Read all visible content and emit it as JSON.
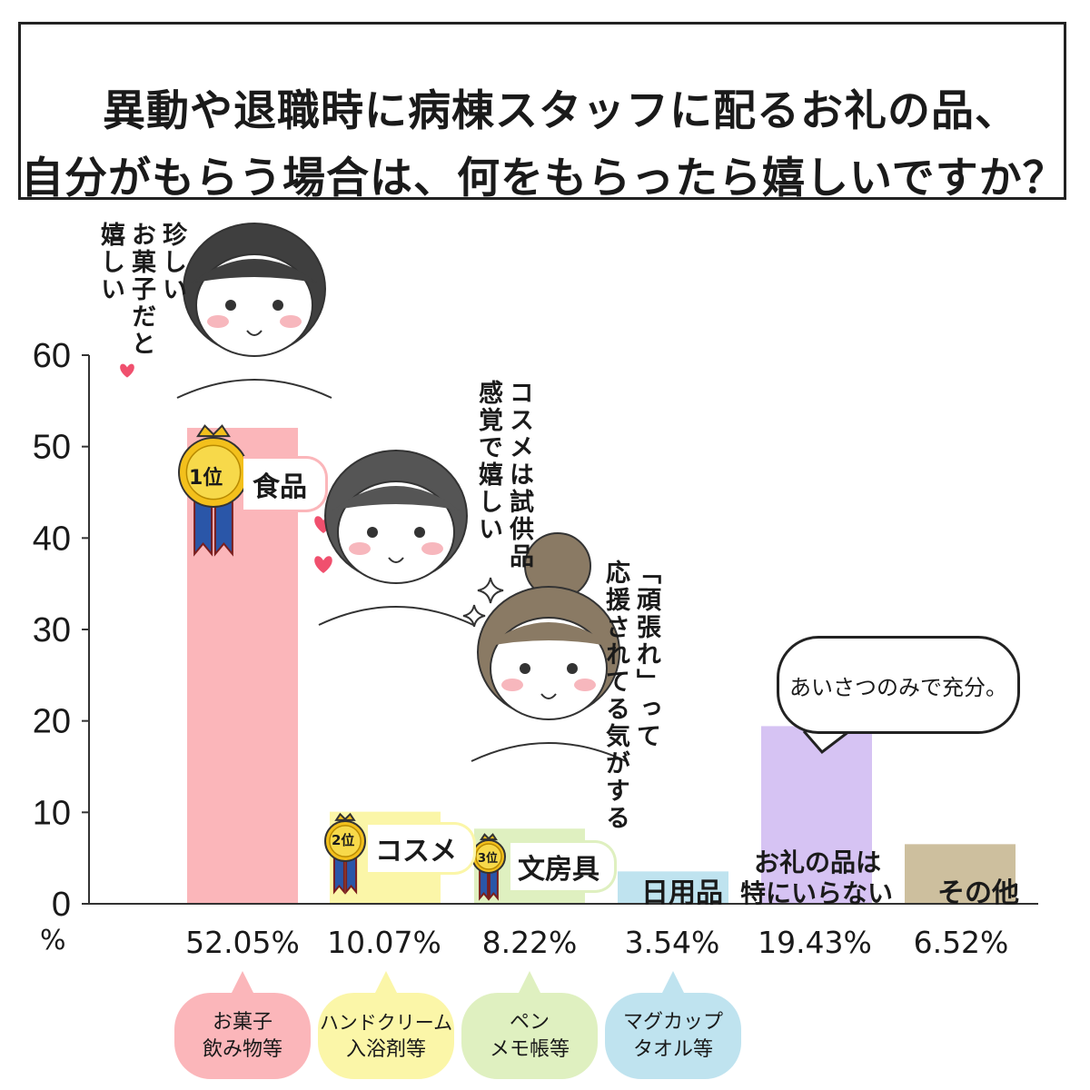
{
  "title": {
    "line1": "異動や退職時に病棟スタッフに配るお礼の品、",
    "line2": "自分がもらう場合は、何をもらったら嬉しいですか？"
  },
  "axis": {
    "unit": "%",
    "ticks": [
      "0",
      "10",
      "20",
      "30",
      "40",
      "50",
      "60"
    ]
  },
  "chart_data": {
    "type": "bar",
    "title": "異動や退職時に病棟スタッフに配るお礼の品、自分がもらう場合は、何をもらったら嬉しいですか？",
    "categories": [
      "食品",
      "コスメ",
      "文房具",
      "日用品",
      "お礼の品は特にいらない",
      "その他"
    ],
    "values": [
      52.05,
      10.07,
      8.22,
      3.54,
      19.43,
      6.52
    ],
    "ylabel": "%",
    "ylim": [
      0,
      60
    ],
    "grid": false,
    "colors": [
      "#fbb6ba",
      "#fbf6a8",
      "#dff0c0",
      "#bfe3ef",
      "#d6c3f3",
      "#cdbf9e"
    ]
  },
  "bars": [
    {
      "label": "食品",
      "pct": "52.05%",
      "rank": "1位"
    },
    {
      "label": "コスメ",
      "pct": "10.07%",
      "rank": "2位"
    },
    {
      "label": "文房具",
      "pct": "8.22%",
      "rank": "3位"
    },
    {
      "label": "日用品",
      "pct": "3.54%"
    },
    {
      "label_line1": "お礼の品は",
      "label_line2": "特にいらない",
      "pct": "19.43%"
    },
    {
      "label": "その他",
      "pct": "6.52%"
    }
  ],
  "examples": [
    {
      "line1": "お菓子",
      "line2": "飲み物等",
      "color": "#fbb6ba"
    },
    {
      "line1": "ハンドクリーム",
      "line2": "入浴剤等",
      "color": "#fbf6a8"
    },
    {
      "line1": "ペン",
      "line2": "メモ帳等",
      "color": "#dff0c0"
    },
    {
      "line1": "マグカップ",
      "line2": "タオル等",
      "color": "#bfe3ef"
    }
  ],
  "comments": {
    "food": "珍しい\nお菓子だと\n嬉しい",
    "cosme": "コスメは試供品\n感覚で嬉しい",
    "stationery": "「頑張れ」って\n応援されてる気がする",
    "none_speech": "あいさつのみで充分。"
  },
  "icons": [
    "heart-icon",
    "sparkle-icon",
    "medal-icon"
  ]
}
